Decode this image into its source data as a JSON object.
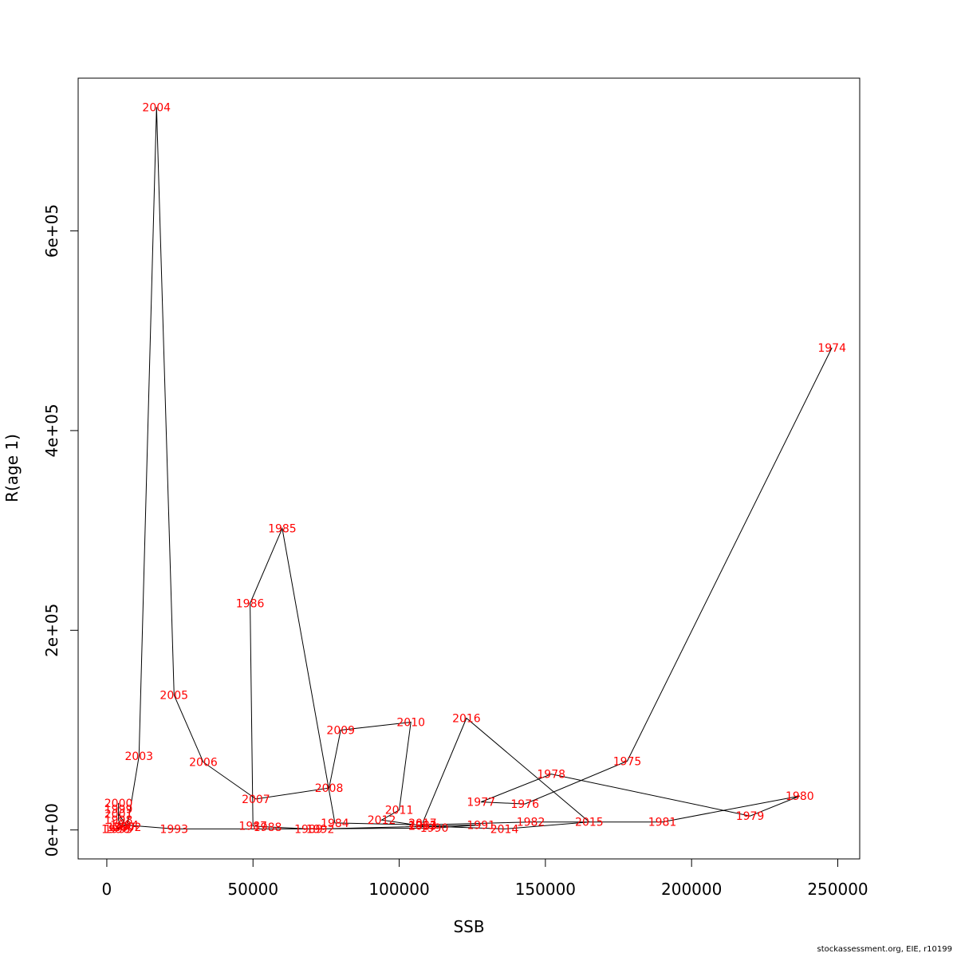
{
  "footer": "stockassessment.org, EIE, r10199",
  "chart_data": {
    "type": "line",
    "xlabel": "SSB",
    "ylabel": "R(age 1)",
    "xlim": [
      -9800,
      257500
    ],
    "ylim": [
      -29000,
      753000
    ],
    "x_ticks": [
      0,
      50000,
      100000,
      150000,
      200000,
      250000
    ],
    "x_tick_labels": [
      "0",
      "50000",
      "100000",
      "150000",
      "200000",
      "250000"
    ],
    "y_ticks": [
      0,
      200000,
      400000,
      600000
    ],
    "y_tick_labels": [
      "0e+00",
      "2e+05",
      "4e+05",
      "6e+05"
    ],
    "grid": false,
    "line_color": "#000000",
    "label_color": "#ff0000",
    "points": [
      {
        "year": "1974",
        "ssb": 248000,
        "r": 483000
      },
      {
        "year": "1975",
        "ssb": 178000,
        "r": 69000
      },
      {
        "year": "1976",
        "ssb": 143000,
        "r": 26000
      },
      {
        "year": "1977",
        "ssb": 128000,
        "r": 28000
      },
      {
        "year": "1978",
        "ssb": 152000,
        "r": 56000
      },
      {
        "year": "1979",
        "ssb": 220000,
        "r": 14000
      },
      {
        "year": "1980",
        "ssb": 237000,
        "r": 34000
      },
      {
        "year": "1981",
        "ssb": 190000,
        "r": 8000
      },
      {
        "year": "1982",
        "ssb": 145000,
        "r": 8000
      },
      {
        "year": "1983",
        "ssb": 108000,
        "r": 5000
      },
      {
        "year": "1984",
        "ssb": 78000,
        "r": 7000
      },
      {
        "year": "1985",
        "ssb": 60000,
        "r": 302000
      },
      {
        "year": "1986",
        "ssb": 49000,
        "r": 227000
      },
      {
        "year": "1987",
        "ssb": 50000,
        "r": 4000
      },
      {
        "year": "1988",
        "ssb": 55000,
        "r": 3000
      },
      {
        "year": "1989",
        "ssb": 69000,
        "r": 1000
      },
      {
        "year": "1990",
        "ssb": 112000,
        "r": 2000
      },
      {
        "year": "1991",
        "ssb": 128000,
        "r": 5000
      },
      {
        "year": "1992",
        "ssb": 73000,
        "r": 1000
      },
      {
        "year": "1993",
        "ssb": 23000,
        "r": 1000
      },
      {
        "year": "1994",
        "ssb": 6000,
        "r": 5000
      },
      {
        "year": "1995",
        "ssb": 4000,
        "r": 1000
      },
      {
        "year": "1996",
        "ssb": 3000,
        "r": 1000
      },
      {
        "year": "1997",
        "ssb": 5000,
        "r": 3000
      },
      {
        "year": "1998",
        "ssb": 4000,
        "r": 10000
      },
      {
        "year": "1999",
        "ssb": 4000,
        "r": 21000
      },
      {
        "year": "2000",
        "ssb": 4000,
        "r": 27000
      },
      {
        "year": "2001",
        "ssb": 4000,
        "r": 16000
      },
      {
        "year": "2002",
        "ssb": 7000,
        "r": 3000
      },
      {
        "year": "2003",
        "ssb": 11000,
        "r": 74000
      },
      {
        "year": "2004",
        "ssb": 17000,
        "r": 724000
      },
      {
        "year": "2005",
        "ssb": 23000,
        "r": 135000
      },
      {
        "year": "2006",
        "ssb": 33000,
        "r": 68000
      },
      {
        "year": "2007",
        "ssb": 51000,
        "r": 31000
      },
      {
        "year": "2008",
        "ssb": 76000,
        "r": 42000
      },
      {
        "year": "2009",
        "ssb": 80000,
        "r": 100000
      },
      {
        "year": "2010",
        "ssb": 104000,
        "r": 108000
      },
      {
        "year": "2011",
        "ssb": 100000,
        "r": 20000
      },
      {
        "year": "2012",
        "ssb": 94000,
        "r": 10000
      },
      {
        "year": "2013",
        "ssb": 108000,
        "r": 4000
      },
      {
        "year": "2014",
        "ssb": 136000,
        "r": 1000
      },
      {
        "year": "2015",
        "ssb": 165000,
        "r": 8000
      },
      {
        "year": "2016",
        "ssb": 123000,
        "r": 112000
      },
      {
        "year": "2017",
        "ssb": 108000,
        "r": 7000
      }
    ]
  }
}
